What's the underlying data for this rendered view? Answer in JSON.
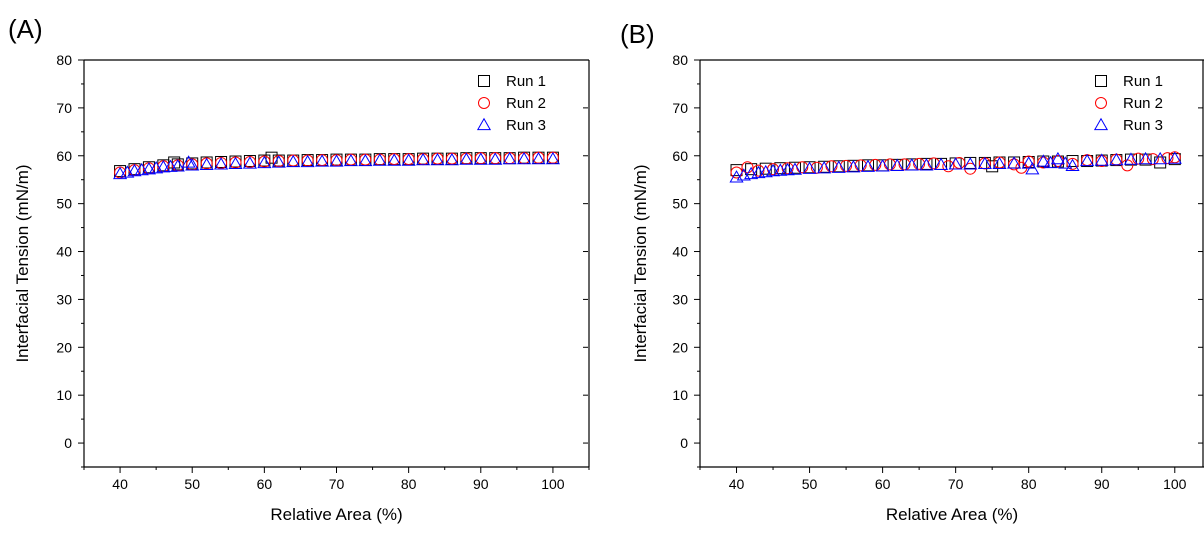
{
  "chart_data": [
    {
      "type": "scatter",
      "panel_label": "(A)",
      "xlabel": "Relative Area (%)",
      "ylabel": "Interfacial Tension (mN/m)",
      "xlim": [
        35,
        105
      ],
      "ylim": [
        -5,
        80
      ],
      "xticks": [
        40,
        50,
        60,
        70,
        80,
        90,
        100
      ],
      "yticks": [
        0,
        10,
        20,
        30,
        40,
        50,
        60,
        70,
        80
      ],
      "legend_position": "top-right",
      "grid": false,
      "series": [
        {
          "name": "Run 1",
          "marker": "square",
          "color": "#000000",
          "x": [
            40,
            42,
            44,
            46,
            47.5,
            48,
            50,
            52,
            54,
            56,
            58,
            60,
            61,
            62,
            64,
            66,
            68,
            70,
            72,
            74,
            76,
            78,
            80,
            82,
            84,
            86,
            88,
            90,
            92,
            94,
            96,
            98,
            100
          ],
          "y": [
            56.8,
            57.2,
            57.6,
            58.0,
            58.6,
            58.2,
            58.4,
            58.6,
            58.7,
            58.8,
            58.9,
            59.0,
            59.6,
            59.0,
            59.0,
            59.1,
            59.1,
            59.2,
            59.2,
            59.2,
            59.3,
            59.3,
            59.3,
            59.4,
            59.4,
            59.4,
            59.5,
            59.5,
            59.5,
            59.5,
            59.6,
            59.6,
            59.6
          ]
        },
        {
          "name": "Run 2",
          "marker": "circle",
          "color": "#ff0000",
          "x": [
            40,
            42,
            44,
            46,
            48,
            50,
            52,
            54,
            56,
            58,
            60,
            62,
            64,
            66,
            68,
            70,
            72,
            74,
            76,
            78,
            80,
            82,
            84,
            86,
            88,
            90,
            92,
            94,
            96,
            98,
            100
          ],
          "y": [
            56.5,
            57.0,
            57.4,
            57.8,
            58.0,
            58.2,
            58.4,
            58.5,
            58.6,
            58.7,
            58.8,
            58.9,
            59.0,
            59.0,
            59.1,
            59.1,
            59.2,
            59.2,
            59.2,
            59.3,
            59.3,
            59.3,
            59.4,
            59.4,
            59.4,
            59.5,
            59.5,
            59.5,
            59.5,
            59.6,
            59.6
          ]
        },
        {
          "name": "Run 3",
          "marker": "triangle",
          "color": "#0000ff",
          "x": [
            40,
            41,
            42,
            43,
            44,
            45,
            46,
            47,
            48,
            49.5,
            50,
            52,
            54,
            56,
            58,
            60,
            62,
            64,
            66,
            68,
            70,
            72,
            74,
            76,
            78,
            80,
            82,
            84,
            86,
            88,
            90,
            92,
            94,
            96,
            98,
            100
          ],
          "y": [
            56.2,
            56.5,
            56.8,
            57.0,
            57.2,
            57.4,
            57.6,
            57.7,
            57.8,
            58.6,
            58.0,
            58.1,
            58.2,
            58.3,
            58.4,
            58.5,
            58.6,
            58.7,
            58.7,
            58.8,
            58.8,
            58.9,
            58.9,
            59.0,
            59.0,
            59.0,
            59.1,
            59.1,
            59.1,
            59.2,
            59.2,
            59.2,
            59.3,
            59.3,
            59.3,
            59.3
          ]
        }
      ]
    },
    {
      "type": "scatter",
      "panel_label": "(B)",
      "xlabel": "Relative Area (%)",
      "ylabel": "Interfacial Tension (mN/m)",
      "xlim": [
        35,
        104
      ],
      "ylim": [
        -5,
        80
      ],
      "xticks": [
        40,
        50,
        60,
        70,
        80,
        90,
        100
      ],
      "yticks": [
        0,
        10,
        20,
        30,
        40,
        50,
        60,
        70,
        80
      ],
      "legend_position": "top-right",
      "grid": false,
      "series": [
        {
          "name": "Run 1",
          "marker": "square",
          "color": "#000000",
          "x": [
            40,
            42,
            44,
            46,
            48,
            50,
            52,
            54,
            56,
            58,
            60,
            62,
            64,
            66,
            68,
            70,
            72,
            74,
            75,
            76,
            78,
            80,
            82,
            84,
            86,
            88,
            90,
            92,
            94,
            96,
            98,
            100
          ],
          "y": [
            57.0,
            57.2,
            57.3,
            57.4,
            57.5,
            57.6,
            57.7,
            57.8,
            57.9,
            58.0,
            58.0,
            58.1,
            58.2,
            58.3,
            58.3,
            58.4,
            58.5,
            58.5,
            57.8,
            58.6,
            58.6,
            58.7,
            58.8,
            58.8,
            58.9,
            58.9,
            59.0,
            59.1,
            59.2,
            59.2,
            58.6,
            59.3
          ]
        },
        {
          "name": "Run 2",
          "marker": "circle",
          "color": "#ff0000",
          "x": [
            40,
            41.5,
            43,
            45,
            47,
            49,
            51,
            53,
            55,
            57,
            59,
            61,
            63,
            65,
            67,
            69,
            70.5,
            72,
            74,
            76,
            78,
            79,
            80,
            82,
            84,
            86,
            88,
            90,
            92,
            93.5,
            95,
            97,
            99,
            100
          ],
          "y": [
            56.5,
            57.6,
            56.9,
            57.2,
            57.4,
            57.6,
            57.5,
            57.8,
            57.9,
            58.0,
            58.1,
            58.2,
            58.2,
            58.3,
            58.4,
            57.8,
            58.5,
            57.3,
            58.4,
            58.6,
            58.2,
            57.5,
            58.8,
            58.6,
            58.9,
            58.3,
            59.1,
            58.9,
            59.2,
            58.0,
            59.4,
            59.3,
            59.5,
            59.7
          ]
        },
        {
          "name": "Run 3",
          "marker": "triangle",
          "color": "#0000ff",
          "x": [
            40,
            41,
            42,
            43,
            44,
            45,
            46,
            47,
            48,
            50,
            52,
            54,
            56,
            58,
            60,
            62,
            64,
            66,
            68,
            70,
            72,
            74,
            76,
            78,
            80,
            80.5,
            82,
            83,
            84,
            85,
            86,
            88,
            90,
            92,
            94,
            96,
            98,
            100
          ],
          "y": [
            55.5,
            55.9,
            56.2,
            56.4,
            56.6,
            56.8,
            56.9,
            57.0,
            57.1,
            57.3,
            57.4,
            57.5,
            57.6,
            57.7,
            57.8,
            57.9,
            58.0,
            58.0,
            58.1,
            58.2,
            58.2,
            58.3,
            58.3,
            58.4,
            58.4,
            57.2,
            58.8,
            58.5,
            59.3,
            58.4,
            57.9,
            58.9,
            59.0,
            59.1,
            59.2,
            59.3,
            59.3,
            59.4
          ]
        }
      ]
    }
  ]
}
